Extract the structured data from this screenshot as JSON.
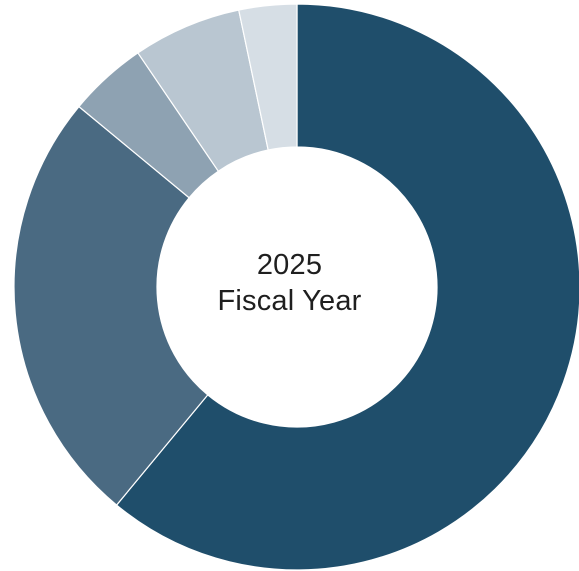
{
  "chart_data": {
    "type": "pie",
    "center_label": {
      "line1": "2025",
      "line2": "Fiscal Year"
    },
    "slices": [
      {
        "value": 61.0,
        "color": "#1f4e6b"
      },
      {
        "value": 25.0,
        "color": "#4a6a82"
      },
      {
        "value": 4.5,
        "color": "#8ea2b2"
      },
      {
        "value": 6.2,
        "color": "#b9c6d1"
      },
      {
        "value": 3.3,
        "color": "#d6dee5"
      }
    ]
  }
}
